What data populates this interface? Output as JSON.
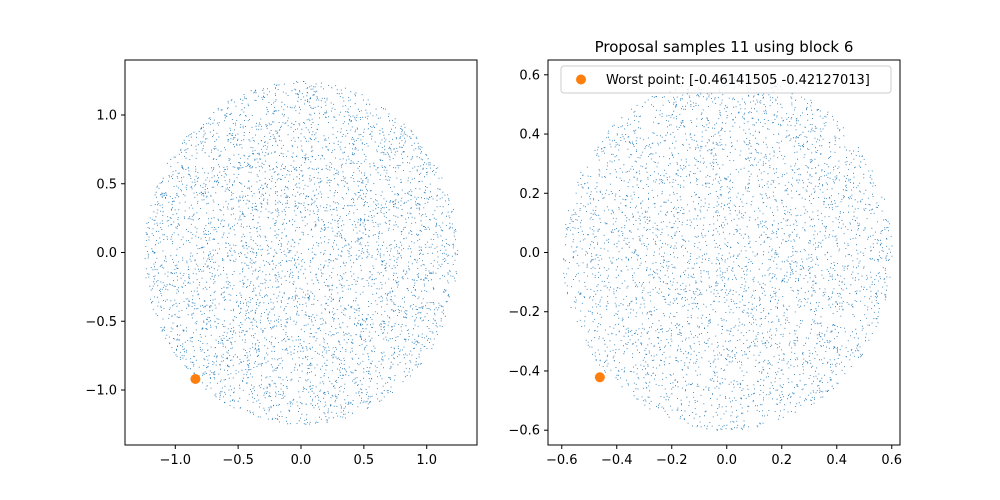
{
  "chart_data": [
    {
      "type": "scatter",
      "title": "",
      "xlabel": "",
      "ylabel": "",
      "xlim": [
        -1.4,
        1.4
      ],
      "ylim": [
        -1.4,
        1.4
      ],
      "xticks": [
        -1.0,
        -0.5,
        0.0,
        0.5,
        1.0
      ],
      "xtick_labels": [
        "−1.0",
        "−0.5",
        "0.0",
        "0.5",
        "1.0"
      ],
      "yticks": [
        1.0,
        0.5,
        0.0,
        -0.5,
        -1.0
      ],
      "ytick_labels": [
        "1.0",
        "0.5",
        "0.0",
        "−0.5",
        "−1.0"
      ],
      "grid": false,
      "samples": {
        "distribution": "uniform-disk",
        "center": [
          0.0,
          0.0
        ],
        "radius": 1.25,
        "count": 4800,
        "color": "#1f77b4"
      },
      "highlight": {
        "x": -0.84,
        "y": -0.92,
        "color": "#ff7f0e"
      }
    },
    {
      "type": "scatter",
      "title": "Proposal samples 11 using block 6",
      "xlabel": "",
      "ylabel": "",
      "xlim": [
        -0.65,
        0.63
      ],
      "ylim": [
        -0.65,
        0.65
      ],
      "xticks": [
        -0.6,
        -0.4,
        -0.2,
        0.0,
        0.2,
        0.4,
        0.6
      ],
      "xtick_labels": [
        "−0.6",
        "−0.4",
        "−0.2",
        "0.0",
        "0.2",
        "0.4",
        "0.6"
      ],
      "yticks": [
        0.6,
        0.4,
        0.2,
        0.0,
        -0.2,
        -0.4,
        -0.6
      ],
      "ytick_labels": [
        "0.6",
        "0.4",
        "0.2",
        "0.0",
        "−0.2",
        "−0.4",
        "−0.6"
      ],
      "grid": false,
      "samples": {
        "distribution": "uniform-disk",
        "center": [
          0.0,
          0.0
        ],
        "radius": 0.6,
        "count": 4200,
        "color": "#1f77b4"
      },
      "highlight": {
        "x": -0.46141505,
        "y": -0.42127013,
        "color": "#ff7f0e"
      },
      "legend": {
        "placement": "upper-left",
        "entries": [
          {
            "label": "Worst point: [-0.46141505 -0.42127013]",
            "color": "#ff7f0e"
          }
        ]
      }
    }
  ]
}
